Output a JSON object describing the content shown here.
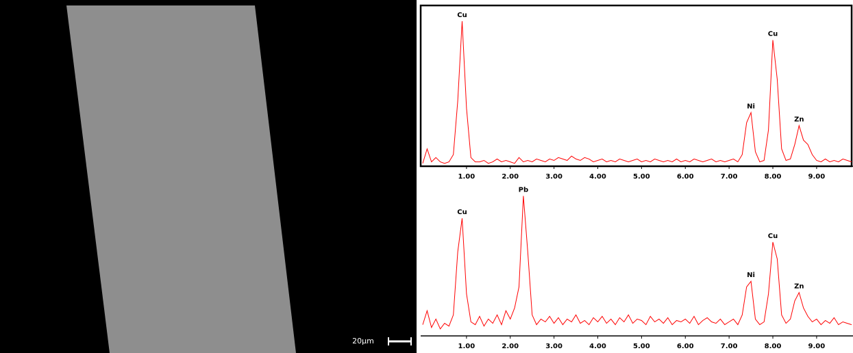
{
  "image": {
    "scale_label": "20µm"
  },
  "chart_data": [
    {
      "type": "line",
      "color": "#ff0000",
      "frame": true,
      "x": [
        0,
        0.1,
        0.2,
        0.3,
        0.4,
        0.5,
        0.6,
        0.7,
        0.8,
        0.9,
        1,
        1.1,
        1.2,
        1.3,
        1.4,
        1.5,
        1.6,
        1.7,
        1.8,
        1.9,
        2,
        2.1,
        2.2,
        2.3,
        2.4,
        2.5,
        2.6,
        2.7,
        2.8,
        2.9,
        3,
        3.1,
        3.2,
        3.3,
        3.4,
        3.5,
        3.6,
        3.7,
        3.8,
        3.9,
        4,
        4.1,
        4.2,
        4.3,
        4.4,
        4.5,
        4.6,
        4.7,
        4.8,
        4.9,
        5,
        5.1,
        5.2,
        5.3,
        5.4,
        5.5,
        5.6,
        5.7,
        5.8,
        5.9,
        6,
        6.1,
        6.2,
        6.3,
        6.4,
        6.5,
        6.6,
        6.7,
        6.8,
        6.9,
        7,
        7.1,
        7.2,
        7.3,
        7.4,
        7.5,
        7.6,
        7.7,
        7.8,
        7.9,
        8,
        8.1,
        8.2,
        8.3,
        8.4,
        8.5,
        8.6,
        8.7,
        8.8,
        8.9,
        9,
        9.1,
        9.2,
        9.3,
        9.4,
        9.5,
        9.6,
        9.7,
        9.8
      ],
      "values": [
        2,
        12,
        3,
        6,
        3,
        2,
        3,
        8,
        45,
        100,
        40,
        6,
        3,
        3,
        4,
        2,
        3,
        5,
        3,
        4,
        3,
        2,
        6,
        3,
        4,
        3,
        5,
        4,
        3,
        5,
        4,
        6,
        5,
        4,
        7,
        5,
        4,
        6,
        5,
        3,
        4,
        5,
        3,
        4,
        3,
        5,
        4,
        3,
        4,
        5,
        3,
        4,
        3,
        5,
        4,
        3,
        4,
        3,
        5,
        3,
        4,
        3,
        5,
        4,
        3,
        4,
        5,
        3,
        4,
        3,
        4,
        5,
        3,
        8,
        30,
        37,
        10,
        3,
        4,
        25,
        87,
        60,
        12,
        4,
        5,
        15,
        28,
        18,
        15,
        8,
        4,
        3,
        5,
        3,
        4,
        3,
        5,
        4,
        3
      ],
      "xlim": [
        0,
        9.8
      ],
      "ylim": [
        0,
        108
      ],
      "xticks": [
        {
          "value": 1,
          "label": "1.00"
        },
        {
          "value": 2,
          "label": "2.00"
        },
        {
          "value": 3,
          "label": "3.00"
        },
        {
          "value": 4,
          "label": "4.00"
        },
        {
          "value": 5,
          "label": "5.00"
        },
        {
          "value": 6,
          "label": "6.00"
        },
        {
          "value": 7,
          "label": "7.00"
        },
        {
          "value": 8,
          "label": "8.00"
        },
        {
          "value": 9,
          "label": "9.00"
        }
      ],
      "annotations": [
        {
          "text": "Cu",
          "x": 0.9,
          "y": 100
        },
        {
          "text": "Ni",
          "x": 7.5,
          "y": 37
        },
        {
          "text": "Cu",
          "x": 8.0,
          "y": 87
        },
        {
          "text": "Zn",
          "x": 8.6,
          "y": 28
        }
      ]
    },
    {
      "type": "line",
      "color": "#ff0000",
      "frame": false,
      "x": [
        0,
        0.1,
        0.2,
        0.3,
        0.4,
        0.5,
        0.6,
        0.7,
        0.8,
        0.9,
        1,
        1.1,
        1.2,
        1.3,
        1.4,
        1.5,
        1.6,
        1.7,
        1.8,
        1.9,
        2,
        2.1,
        2.2,
        2.3,
        2.4,
        2.5,
        2.6,
        2.7,
        2.8,
        2.9,
        3,
        3.1,
        3.2,
        3.3,
        3.4,
        3.5,
        3.6,
        3.7,
        3.8,
        3.9,
        4,
        4.1,
        4.2,
        4.3,
        4.4,
        4.5,
        4.6,
        4.7,
        4.8,
        4.9,
        5,
        5.1,
        5.2,
        5.3,
        5.4,
        5.5,
        5.6,
        5.7,
        5.8,
        5.9,
        6,
        6.1,
        6.2,
        6.3,
        6.4,
        6.5,
        6.6,
        6.7,
        6.8,
        6.9,
        7,
        7.1,
        7.2,
        7.3,
        7.4,
        7.5,
        7.6,
        7.7,
        7.8,
        7.9,
        8,
        8.1,
        8.2,
        8.3,
        8.4,
        8.5,
        8.6,
        8.7,
        8.8,
        8.9,
        9,
        9.1,
        9.2,
        9.3,
        9.4,
        9.5,
        9.6,
        9.7,
        9.8
      ],
      "values": [
        8,
        18,
        6,
        12,
        5,
        9,
        7,
        15,
        60,
        84,
        30,
        10,
        8,
        14,
        7,
        12,
        9,
        15,
        8,
        18,
        12,
        20,
        35,
        100,
        60,
        15,
        8,
        12,
        10,
        14,
        9,
        13,
        8,
        12,
        10,
        15,
        9,
        11,
        8,
        13,
        10,
        14,
        9,
        12,
        8,
        13,
        10,
        15,
        9,
        12,
        11,
        8,
        14,
        10,
        12,
        9,
        13,
        8,
        11,
        10,
        12,
        9,
        14,
        8,
        11,
        13,
        10,
        9,
        12,
        8,
        10,
        12,
        8,
        15,
        35,
        39,
        12,
        8,
        10,
        30,
        67,
        55,
        15,
        9,
        12,
        25,
        31,
        20,
        14,
        10,
        12,
        8,
        11,
        9,
        13,
        8,
        10,
        9,
        8
      ],
      "xlim": [
        0,
        9.8
      ],
      "ylim": [
        0,
        108
      ],
      "xticks": [
        {
          "value": 1,
          "label": "1.00"
        },
        {
          "value": 2,
          "label": "2.00"
        },
        {
          "value": 3,
          "label": "3.00"
        },
        {
          "value": 4,
          "label": "4.00"
        },
        {
          "value": 5,
          "label": "5.00"
        },
        {
          "value": 6,
          "label": "6.00"
        },
        {
          "value": 7,
          "label": "7.00"
        },
        {
          "value": 8,
          "label": "8.00"
        },
        {
          "value": 9,
          "label": "9.00"
        }
      ],
      "annotations": [
        {
          "text": "Cu",
          "x": 0.9,
          "y": 84
        },
        {
          "text": "Pb",
          "x": 2.3,
          "y": 100
        },
        {
          "text": "Ni",
          "x": 7.5,
          "y": 39
        },
        {
          "text": "Cu",
          "x": 8.0,
          "y": 67
        },
        {
          "text": "Zn",
          "x": 8.6,
          "y": 31
        }
      ]
    }
  ]
}
